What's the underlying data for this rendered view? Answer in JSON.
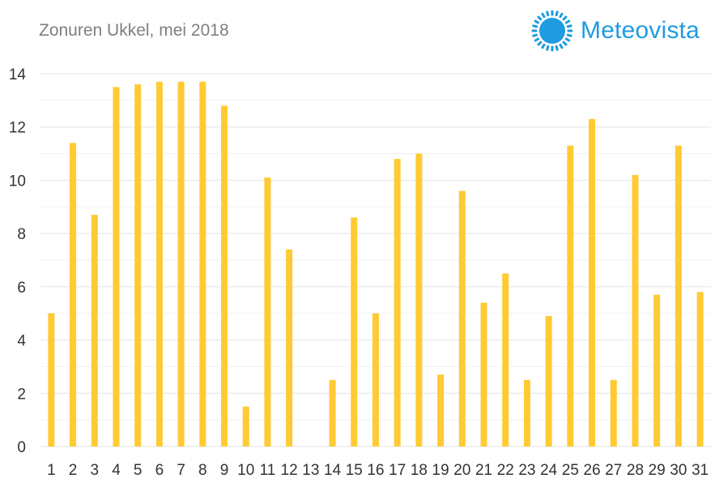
{
  "title": "Zonuren Ukkel, mei 2018",
  "logo": {
    "text": "Meteovista",
    "icon": "sun-icon",
    "color": "#1f9be0"
  },
  "chart_data": {
    "type": "bar",
    "title": "Zonuren Ukkel, mei 2018",
    "xlabel": "",
    "ylabel": "",
    "ylim": [
      0,
      14
    ],
    "yticks": [
      0,
      2,
      4,
      6,
      8,
      10,
      12,
      14
    ],
    "grid": true,
    "bar_color": "#ffca33",
    "categories": [
      "1",
      "2",
      "3",
      "4",
      "5",
      "6",
      "7",
      "8",
      "9",
      "10",
      "11",
      "12",
      "13",
      "14",
      "15",
      "16",
      "17",
      "18",
      "19",
      "20",
      "21",
      "22",
      "23",
      "24",
      "25",
      "26",
      "27",
      "28",
      "29",
      "30",
      "31"
    ],
    "values": [
      5.0,
      11.4,
      8.7,
      13.5,
      13.6,
      13.7,
      13.7,
      13.7,
      12.8,
      1.5,
      10.1,
      7.4,
      0,
      2.5,
      8.6,
      5.0,
      10.8,
      11.0,
      2.7,
      9.6,
      5.4,
      6.5,
      2.5,
      4.9,
      11.3,
      12.3,
      2.5,
      10.2,
      5.7,
      11.3,
      5.8
    ]
  }
}
